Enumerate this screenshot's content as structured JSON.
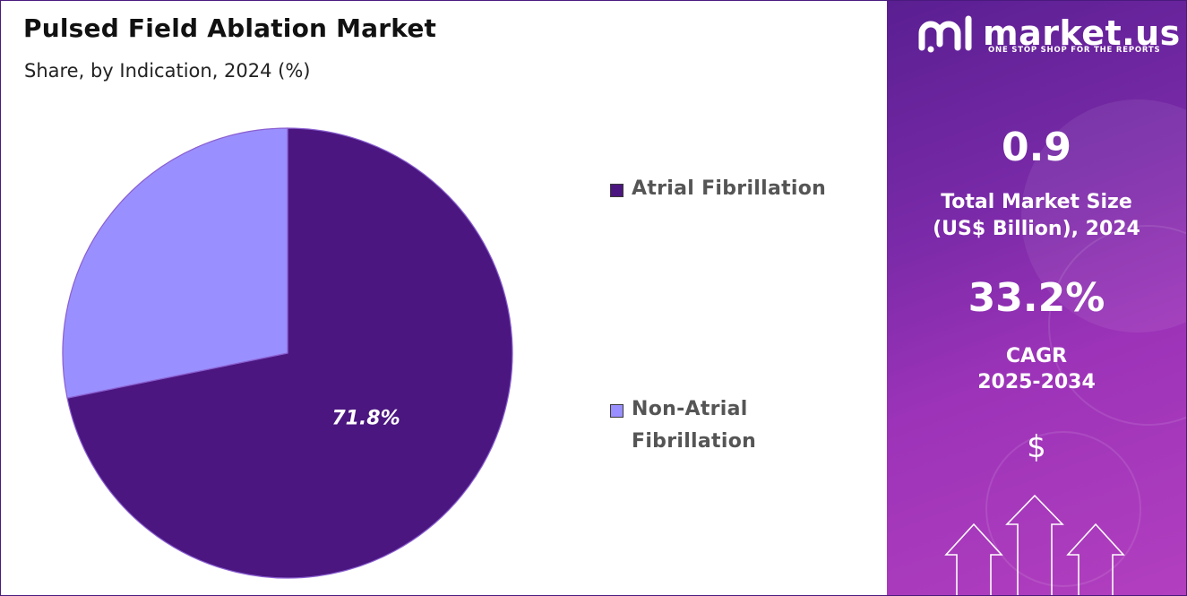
{
  "header": {
    "title": "Pulsed Field Ablation Market",
    "subtitle": "Share, by Indication, 2024 (%)"
  },
  "chart_data": {
    "type": "pie",
    "title": "Pulsed Field Ablation Market",
    "subtitle": "Share, by Indication, 2024 (%)",
    "slices": [
      {
        "name": "Atrial Fibrillation",
        "value": 71.8,
        "label": "71.8%",
        "color": "#4b1680"
      },
      {
        "name": "Non-Atrial Fibrillation",
        "value": 28.2,
        "label": "",
        "color": "#9a8ffe"
      }
    ],
    "legend": {
      "position": "right",
      "items": [
        {
          "lines": [
            "Atrial Fibrillation"
          ],
          "color": "#4b1680"
        },
        {
          "lines": [
            "Non-Atrial",
            "Fibrillation"
          ],
          "color": "#9a8ffe"
        }
      ]
    }
  },
  "sidebar": {
    "brand": {
      "name": "market.us",
      "tagline": "ONE STOP SHOP FOR THE REPORTS"
    },
    "market_size": {
      "value": "0.9",
      "label_line1": "Total Market Size",
      "label_line2": "(US$ Billion), 2024"
    },
    "cagr": {
      "value": "33.2%",
      "label_line1": "CAGR",
      "label_line2": "2025-2034"
    },
    "dollar_symbol": "$",
    "icons": [
      "market-us-logo-icon",
      "dollar-icon",
      "growth-arrow-icon"
    ]
  },
  "colors": {
    "accent_dark": "#4b1680",
    "accent_light": "#9a8ffe",
    "panel": "#7a2aa8"
  }
}
